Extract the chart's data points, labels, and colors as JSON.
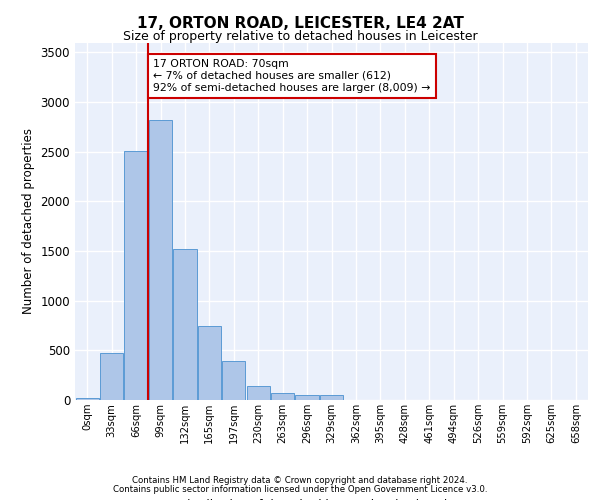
{
  "title_line1": "17, ORTON ROAD, LEICESTER, LE4 2AT",
  "title_line2": "Size of property relative to detached houses in Leicester",
  "xlabel": "Distribution of detached houses by size in Leicester",
  "ylabel": "Number of detached properties",
  "footnote1": "Contains HM Land Registry data © Crown copyright and database right 2024.",
  "footnote2": "Contains public sector information licensed under the Open Government Licence v3.0.",
  "bin_labels": [
    "0sqm",
    "33sqm",
    "66sqm",
    "99sqm",
    "132sqm",
    "165sqm",
    "197sqm",
    "230sqm",
    "263sqm",
    "296sqm",
    "329sqm",
    "362sqm",
    "395sqm",
    "428sqm",
    "461sqm",
    "494sqm",
    "526sqm",
    "559sqm",
    "592sqm",
    "625sqm",
    "658sqm"
  ],
  "bar_values": [
    20,
    470,
    2510,
    2820,
    1520,
    750,
    390,
    145,
    75,
    55,
    55,
    0,
    0,
    0,
    0,
    0,
    0,
    0,
    0,
    0,
    0
  ],
  "bar_color": "#aec6e8",
  "bar_edge_color": "#5b9bd5",
  "ylim": [
    0,
    3600
  ],
  "yticks": [
    0,
    500,
    1000,
    1500,
    2000,
    2500,
    3000,
    3500
  ],
  "annotation_title": "17 ORTON ROAD: 70sqm",
  "annotation_line1": "← 7% of detached houses are smaller (612)",
  "annotation_line2": "92% of semi-detached houses are larger (8,009) →",
  "vline_x": 2,
  "background_color": "#eaf0fb",
  "grid_color": "#ffffff",
  "annotation_box_color": "#ffffff",
  "annotation_box_edge": "#cc0000"
}
